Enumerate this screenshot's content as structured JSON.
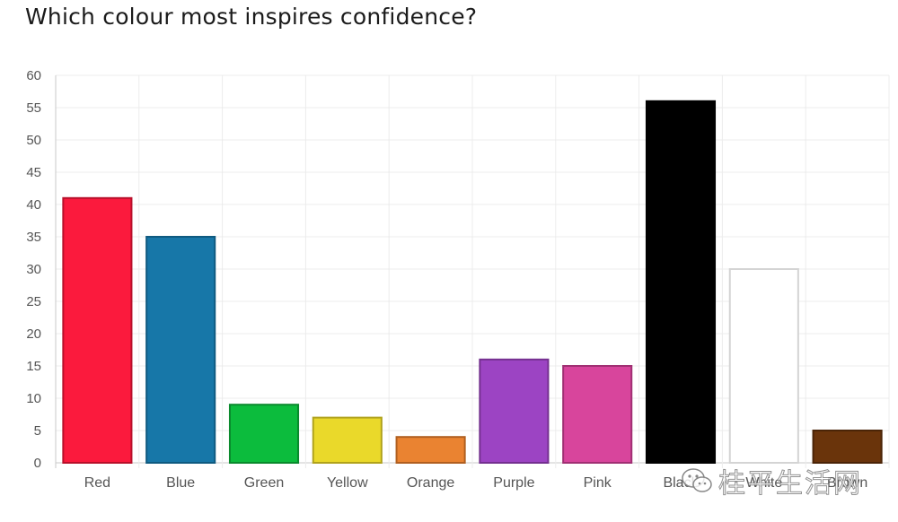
{
  "chart_data": {
    "type": "bar",
    "title": "Which colour most inspires confidence?",
    "categories": [
      "Red",
      "Blue",
      "Green",
      "Yellow",
      "Orange",
      "Purple",
      "Pink",
      "Black",
      "White",
      "Brown"
    ],
    "values": [
      41,
      35,
      9,
      7,
      4,
      16,
      15,
      56,
      30,
      5
    ],
    "bar_colors": [
      "#fb1a3d",
      "#1777a8",
      "#0cbc3d",
      "#ead92a",
      "#ea8331",
      "#9c44c3",
      "#d8459c",
      "#000000",
      "#ffffff",
      "#6a340b"
    ],
    "bar_borders": [
      "#b8102a",
      "#0f5a80",
      "#0a8a2d",
      "#b0a21d",
      "#b05f20",
      "#74308f",
      "#a03073",
      "#000000",
      "#d4d4d4",
      "#4a2407"
    ],
    "yticks": [
      0,
      5,
      10,
      15,
      20,
      25,
      30,
      35,
      40,
      45,
      50,
      55,
      60
    ],
    "ylim": [
      0,
      60
    ],
    "xlabel": "",
    "ylabel": "",
    "grid": true,
    "legend": "none"
  },
  "watermark": {
    "icon": "wechat-icon",
    "text": "桂平生活网"
  }
}
